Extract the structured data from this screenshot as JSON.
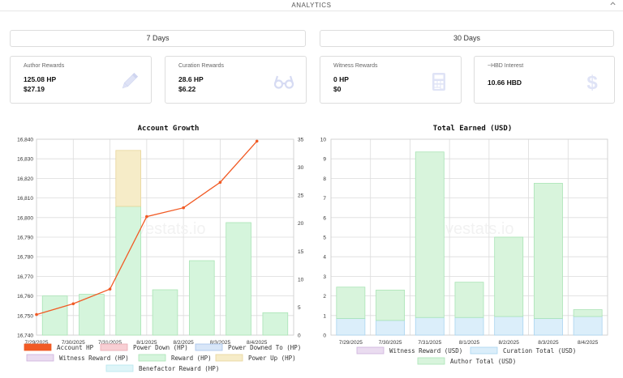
{
  "header": {
    "title": "ANALYTICS"
  },
  "range_buttons": {
    "seven_days": "7 Days",
    "thirty_days": "30 Days"
  },
  "cards": [
    {
      "title": "Author Rewards",
      "line1": "125.08 HP",
      "line2": "$27.19",
      "icon": "pencil-icon"
    },
    {
      "title": "Curation Rewards",
      "line1": "28.6 HP",
      "line2": "$6.22",
      "icon": "glasses-icon"
    },
    {
      "title": "Witness Rewards",
      "line1": "0 HP",
      "line2": "$0",
      "icon": "calculator-icon"
    },
    {
      "title": "~HBD Interest",
      "line1": "10.66 HBD",
      "line2": "",
      "icon": "dollar-icon"
    }
  ],
  "colors": {
    "account_hp": "#f15a24",
    "power_down": "#f8cfd4",
    "power_downed_to": "#d8e6f8",
    "witness_reward": "#eadcf0",
    "reward": "#d5f5dc",
    "power_up": "#f6ecc8",
    "benefactor": "#def5f8",
    "curation_total": "#dbeefa",
    "author_total": "#d8f4dc"
  },
  "chart_data": [
    {
      "type": "bar",
      "title": "Account Growth",
      "categories": [
        "7/29/2025",
        "7/30/2025",
        "7/31/2025",
        "8/1/2025",
        "8/2/2025",
        "8/3/2025",
        "8/4/2025"
      ],
      "ylim": [
        16740,
        16840
      ],
      "yticks": [
        "16,740",
        "16,750",
        "16,760",
        "16,770",
        "16,780",
        "16,790",
        "16,800",
        "16,810",
        "16,820",
        "16,830",
        "16,840"
      ],
      "y2lim": [
        0,
        35
      ],
      "y2ticks": [
        "0",
        "5",
        "10",
        "15",
        "20",
        "25",
        "30",
        "35"
      ],
      "series": [
        {
          "name": "Reward (HP)",
          "axis": "right",
          "values": [
            7,
            7.3,
            23,
            8.1,
            13.3,
            20.1,
            4
          ]
        },
        {
          "name": "Power Up (HP)",
          "axis": "right",
          "values": [
            0,
            0,
            10,
            0,
            0,
            0,
            0
          ]
        },
        {
          "name": "Account HP",
          "axis": "left",
          "values": [
            16750.5,
            16756,
            16763.5,
            16800.5,
            16805,
            16818,
            16839
          ]
        }
      ],
      "legend": [
        "Account HP",
        "Power Down (HP)",
        "Power Downed To (HP)",
        "Witness Reward (HP)",
        "Reward (HP)",
        "Power Up (HP)",
        "Benefactor Reward (HP)"
      ],
      "legend_position": "bottom",
      "watermark": "hivestats.io",
      "grid": true
    },
    {
      "type": "bar",
      "title": "Total Earned (USD)",
      "categories": [
        "7/29/2025",
        "7/30/2025",
        "7/31/2025",
        "8/1/2025",
        "8/2/2025",
        "8/3/2025",
        "8/4/2025"
      ],
      "ylim": [
        0,
        10
      ],
      "yticks": [
        "0",
        "1",
        "2",
        "3",
        "4",
        "5",
        "6",
        "7",
        "8",
        "9",
        "10"
      ],
      "series": [
        {
          "name": "Curation Total (USD)",
          "values": [
            0.85,
            0.75,
            0.9,
            0.9,
            0.95,
            0.85,
            0.95
          ]
        },
        {
          "name": "Author Total (USD)",
          "values": [
            1.6,
            1.55,
            8.45,
            1.8,
            4.05,
            6.9,
            0.35
          ]
        }
      ],
      "legend": [
        "Witness Reward (USD)",
        "Curation Total (USD)",
        "Author Total (USD)"
      ],
      "legend_position": "bottom",
      "watermark": "hivestats.io",
      "grid": true
    }
  ]
}
